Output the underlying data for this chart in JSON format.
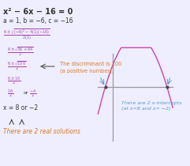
{
  "title": "x² − 6x − 16 = 0",
  "line1": "a = 1, b = −6, c = −16",
  "real_solutions_text": "There are 2 real solutions",
  "discriminant_text": "The discriminant is 100\n(a positive number).",
  "intercepts_text": "There are 2 x-intercepts\n(at x=8 and x= −2)",
  "bg_color": "#eeeeff",
  "text_color_black": "#333333",
  "text_color_orange": "#e07820",
  "text_color_blue": "#5599cc",
  "text_color_purple": "#aa44aa",
  "parabola_color": "#cc44aa",
  "axis_color": "#999999",
  "arrow_color": "#555555"
}
